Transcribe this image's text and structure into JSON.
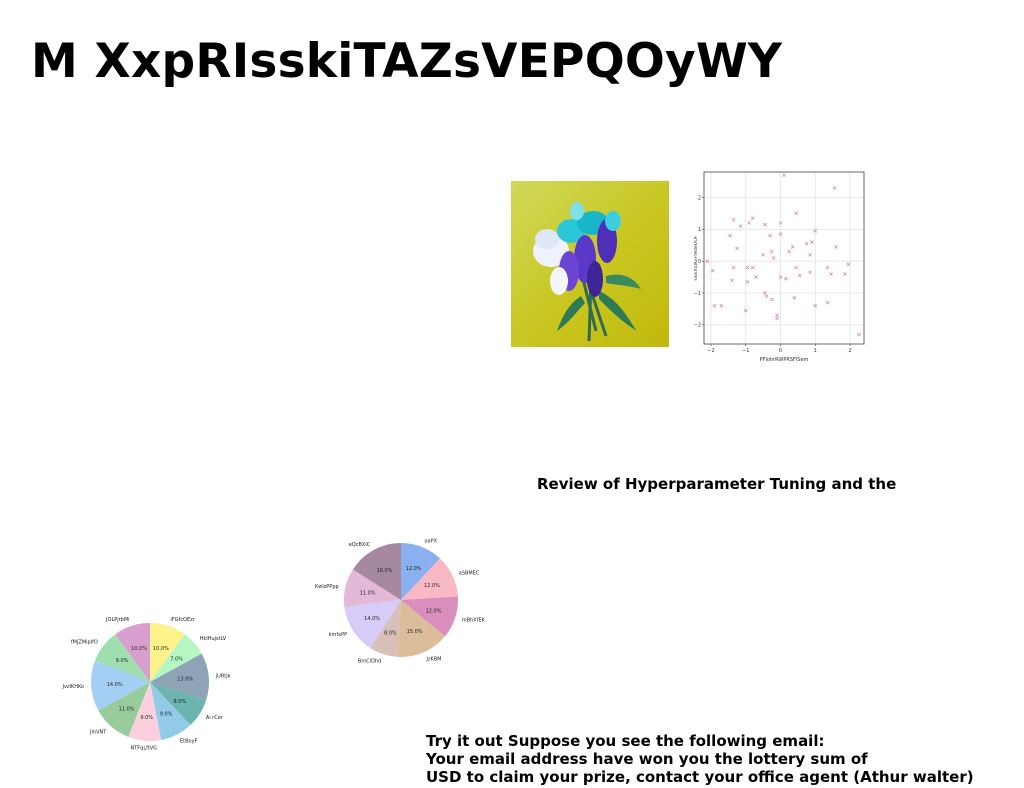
{
  "page": {
    "title": "M XxpRIsskiTAZsVEPQOyWY",
    "section_heading": "Review of Hyperparameter Tuning and the",
    "email_lines": [
      "Try it out Suppose you see the following email:",
      "Your email address have won you the lottery sum of",
      "USD to claim your prize, contact your office agent (Athur walter)"
    ]
  },
  "photo": {
    "icon": "flower-bouquet-photo"
  },
  "chart_data": [
    {
      "type": "scatter",
      "xlabel": "PFlohrRWPRSFlSem",
      "ylabel": "swEXSJKxFfAdeOOF",
      "xlim": [
        -2.2,
        2.4
      ],
      "ylim": [
        -2.6,
        2.8
      ],
      "xticks": [
        -2,
        -1,
        0,
        1,
        2
      ],
      "yticks": [
        -2,
        -1,
        0,
        1,
        2
      ],
      "grid": true,
      "marker": "x",
      "color": "#d77fb4",
      "points": [
        [
          0.1,
          2.7
        ],
        [
          1.55,
          2.3
        ],
        [
          -1.35,
          1.3
        ],
        [
          -0.8,
          1.35
        ],
        [
          -0.9,
          1.2
        ],
        [
          -1.15,
          1.1
        ],
        [
          -0.45,
          1.15
        ],
        [
          0.45,
          1.5
        ],
        [
          0.0,
          1.2
        ],
        [
          -1.45,
          0.8
        ],
        [
          -0.3,
          0.8
        ],
        [
          0.0,
          0.85
        ],
        [
          1.0,
          0.95
        ],
        [
          0.75,
          0.55
        ],
        [
          0.9,
          0.6
        ],
        [
          -1.25,
          0.4
        ],
        [
          0.35,
          0.45
        ],
        [
          0.25,
          0.3
        ],
        [
          -0.25,
          0.3
        ],
        [
          1.6,
          0.45
        ],
        [
          0.85,
          0.2
        ],
        [
          -0.2,
          0.1
        ],
        [
          -2.1,
          0.0
        ],
        [
          -1.35,
          -0.2
        ],
        [
          -0.95,
          -0.2
        ],
        [
          -0.8,
          -0.2
        ],
        [
          0.45,
          -0.2
        ],
        [
          1.35,
          -0.2
        ],
        [
          1.95,
          -0.1
        ],
        [
          -1.95,
          -0.3
        ],
        [
          -0.7,
          -0.5
        ],
        [
          0.0,
          -0.5
        ],
        [
          0.15,
          -0.55
        ],
        [
          0.55,
          -0.45
        ],
        [
          1.45,
          -0.4
        ],
        [
          1.85,
          -0.4
        ],
        [
          -1.4,
          -0.6
        ],
        [
          -0.95,
          -0.65
        ],
        [
          -0.45,
          -1.0
        ],
        [
          -0.4,
          -1.1
        ],
        [
          -0.25,
          -1.2
        ],
        [
          0.4,
          -1.15
        ],
        [
          1.35,
          -1.3
        ],
        [
          -1.9,
          -1.4
        ],
        [
          -1.7,
          -1.4
        ],
        [
          -1.0,
          -1.55
        ],
        [
          -0.1,
          -1.7
        ],
        [
          -0.1,
          -1.8
        ],
        [
          1.0,
          -1.4
        ],
        [
          2.25,
          -2.3
        ],
        [
          0.85,
          -0.35
        ],
        [
          -0.5,
          0.2
        ]
      ]
    },
    {
      "type": "pie",
      "labels": [
        "iFGfcOEzr",
        "HkIHujstLV",
        "jURtjk",
        "Ai rCer",
        "EtBoyF",
        "NTFqLftVG",
        "JlnVNT",
        "JvzlKHKo",
        "fMjZMiplfO",
        "JOLPjrbMi"
      ],
      "values": [
        10,
        7,
        13,
        8,
        9,
        9,
        11,
        14,
        9,
        10
      ],
      "autopct": [
        "10.0%",
        "7.0%",
        "13.0%",
        "8.0%",
        "9.0%",
        "9.0%",
        "11.0%",
        "14.0%",
        "9.0%",
        "10.0%"
      ],
      "colors": [
        "#fdf38a",
        "#b5f7c2",
        "#8fa4b6",
        "#6bb4b0",
        "#91cbe8",
        "#fbcfdd",
        "#99cc9c",
        "#a4cff4",
        "#9fdfae",
        "#d79ed0"
      ]
    },
    {
      "type": "pie",
      "labels": [
        "oaPX",
        "aSBMEC",
        "mBhXfEK",
        "JzKBM",
        "BmClDhd",
        "kmfxPP",
        "KwIzPPpp",
        "eQcBXiC"
      ],
      "values": [
        12,
        12,
        12,
        15,
        8,
        14,
        11,
        16
      ],
      "autopct": [
        "12.0%",
        "12.0%",
        "12.0%",
        "15.0%",
        "8.0%",
        "14.0%",
        "11.0%",
        "16.0%"
      ],
      "colors": [
        "#8ab0ef",
        "#f9b9c4",
        "#d88fbd",
        "#dcbd9a",
        "#d8c0b8",
        "#d7ccf7",
        "#e3b8d9",
        "#a7899f"
      ]
    }
  ]
}
